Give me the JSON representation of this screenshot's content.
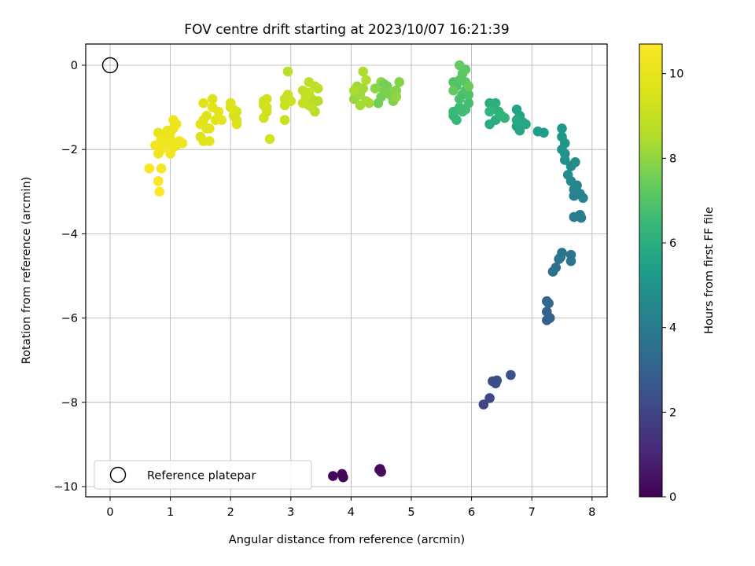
{
  "chart_data": {
    "type": "scatter",
    "title": "FOV centre drift starting at 2023/10/07 16:21:39",
    "xlabel": "Angular distance from reference (arcmin)",
    "ylabel": "Rotation from reference (arcmin)",
    "xlim": [
      -0.4,
      8.25
    ],
    "ylim": [
      -10.25,
      0.5
    ],
    "xticks": [
      0,
      1,
      2,
      3,
      4,
      5,
      6,
      7,
      8
    ],
    "xtick_labels": [
      "0",
      "1",
      "2",
      "3",
      "4",
      "5",
      "6",
      "7",
      "8"
    ],
    "yticks": [
      0,
      -2,
      -4,
      -6,
      -8,
      -10
    ],
    "ytick_labels": [
      "0",
      "−2",
      "−4",
      "−6",
      "−8",
      "−10"
    ],
    "grid": true,
    "legend": {
      "placement": "lower-left",
      "entries": [
        "Reference platepar"
      ]
    },
    "reference_point": {
      "x": 0,
      "y": 0
    },
    "colorbar": {
      "label": "Hours from first FF file",
      "colormap": "viridis",
      "range": [
        0,
        10.7
      ],
      "ticks": [
        0,
        2,
        4,
        6,
        8,
        10
      ],
      "tick_labels": [
        "0",
        "2",
        "4",
        "6",
        "8",
        "10"
      ]
    },
    "points": [
      [
        3.7,
        -9.75,
        0.1
      ],
      [
        3.85,
        -9.7,
        0.2
      ],
      [
        3.87,
        -9.78,
        0.15
      ],
      [
        4.47,
        -9.6,
        0.3
      ],
      [
        4.5,
        -9.65,
        0.35
      ],
      [
        4.48,
        -9.58,
        0.25
      ],
      [
        6.2,
        -8.05,
        2.0
      ],
      [
        6.3,
        -7.9,
        2.1
      ],
      [
        6.35,
        -7.5,
        2.2
      ],
      [
        6.4,
        -7.55,
        2.25
      ],
      [
        6.42,
        -7.48,
        2.3
      ],
      [
        6.65,
        -7.35,
        2.4
      ],
      [
        7.25,
        -6.05,
        3.0
      ],
      [
        7.3,
        -6.0,
        3.05
      ],
      [
        7.25,
        -5.85,
        3.1
      ],
      [
        7.25,
        -5.6,
        3.15
      ],
      [
        7.28,
        -5.65,
        3.2
      ],
      [
        7.35,
        -4.9,
        3.5
      ],
      [
        7.4,
        -4.8,
        3.55
      ],
      [
        7.45,
        -4.6,
        3.6
      ],
      [
        7.5,
        -4.45,
        3.65
      ],
      [
        7.48,
        -4.55,
        3.7
      ],
      [
        7.65,
        -4.5,
        3.75
      ],
      [
        7.65,
        -4.65,
        3.8
      ],
      [
        7.7,
        -3.6,
        4.0
      ],
      [
        7.8,
        -3.55,
        4.05
      ],
      [
        7.82,
        -3.62,
        4.1
      ],
      [
        7.7,
        -3.1,
        4.2
      ],
      [
        7.75,
        -3.0,
        4.25
      ],
      [
        7.8,
        -3.05,
        4.3
      ],
      [
        7.85,
        -3.15,
        4.35
      ],
      [
        7.75,
        -2.85,
        4.4
      ],
      [
        7.7,
        -2.95,
        4.45
      ],
      [
        7.65,
        -2.75,
        4.5
      ],
      [
        7.6,
        -2.6,
        4.6
      ],
      [
        7.65,
        -2.4,
        4.65
      ],
      [
        7.72,
        -2.3,
        4.7
      ],
      [
        7.55,
        -2.25,
        4.8
      ],
      [
        7.55,
        -2.1,
        4.9
      ],
      [
        7.5,
        -2.0,
        5.0
      ],
      [
        7.55,
        -1.85,
        5.05
      ],
      [
        7.5,
        -1.7,
        5.1
      ],
      [
        7.5,
        -1.5,
        5.15
      ],
      [
        7.1,
        -1.57,
        5.3
      ],
      [
        7.2,
        -1.6,
        5.35
      ],
      [
        6.75,
        -1.05,
        5.5
      ],
      [
        6.8,
        -1.2,
        5.55
      ],
      [
        6.75,
        -1.45,
        5.6
      ],
      [
        6.8,
        -1.55,
        5.65
      ],
      [
        6.85,
        -1.35,
        5.7
      ],
      [
        6.9,
        -1.4,
        5.75
      ],
      [
        6.75,
        -1.3,
        5.8
      ],
      [
        6.3,
        -1.4,
        5.9
      ],
      [
        6.4,
        -1.3,
        5.95
      ],
      [
        6.35,
        -1.0,
        6.0
      ],
      [
        6.3,
        -0.9,
        6.05
      ],
      [
        6.4,
        -0.9,
        6.1
      ],
      [
        6.45,
        -1.1,
        6.15
      ],
      [
        6.5,
        -1.2,
        6.2
      ],
      [
        6.55,
        -1.25,
        6.25
      ],
      [
        6.3,
        -1.1,
        6.3
      ],
      [
        5.7,
        -1.2,
        6.4
      ],
      [
        5.75,
        -1.3,
        6.45
      ],
      [
        5.7,
        -1.1,
        6.5
      ],
      [
        5.8,
        -1.0,
        6.55
      ],
      [
        5.85,
        -1.1,
        6.6
      ],
      [
        5.9,
        -1.05,
        6.65
      ],
      [
        5.95,
        -0.9,
        6.7
      ],
      [
        5.8,
        -0.8,
        6.75
      ],
      [
        5.85,
        -0.7,
        6.8
      ],
      [
        5.9,
        -0.6,
        6.85
      ],
      [
        5.95,
        -0.7,
        6.9
      ],
      [
        5.75,
        -0.5,
        6.95
      ],
      [
        5.7,
        -0.4,
        7.0
      ],
      [
        5.8,
        -0.35,
        7.05
      ],
      [
        5.9,
        -0.4,
        7.1
      ],
      [
        5.85,
        -0.2,
        7.15
      ],
      [
        5.9,
        -0.1,
        7.2
      ],
      [
        5.8,
        0.0,
        7.25
      ],
      [
        5.7,
        -0.6,
        7.3
      ],
      [
        5.95,
        -0.5,
        7.35
      ],
      [
        4.45,
        -0.9,
        7.5
      ],
      [
        4.5,
        -0.75,
        7.55
      ],
      [
        4.55,
        -0.6,
        7.6
      ],
      [
        4.6,
        -0.5,
        7.65
      ],
      [
        4.65,
        -0.7,
        7.7
      ],
      [
        4.7,
        -0.85,
        7.75
      ],
      [
        4.75,
        -0.6,
        7.8
      ],
      [
        4.8,
        -0.4,
        7.85
      ],
      [
        4.5,
        -0.4,
        7.9
      ],
      [
        4.4,
        -0.55,
        7.95
      ],
      [
        4.75,
        -0.75,
        8.0
      ],
      [
        4.55,
        -0.45,
        7.58
      ],
      [
        4.05,
        -0.8,
        8.1
      ],
      [
        4.1,
        -0.5,
        8.15
      ],
      [
        4.15,
        -0.7,
        8.2
      ],
      [
        4.2,
        -0.55,
        8.25
      ],
      [
        4.25,
        -0.85,
        8.3
      ],
      [
        4.3,
        -0.9,
        8.35
      ],
      [
        4.05,
        -0.6,
        8.4
      ],
      [
        4.2,
        -0.15,
        8.45
      ],
      [
        4.25,
        -0.35,
        8.5
      ],
      [
        4.15,
        -0.95,
        8.3
      ],
      [
        3.3,
        -0.95,
        8.55
      ],
      [
        3.35,
        -0.8,
        8.6
      ],
      [
        3.4,
        -1.1,
        8.65
      ],
      [
        3.45,
        -0.55,
        8.7
      ],
      [
        3.3,
        -0.4,
        8.75
      ],
      [
        3.4,
        -0.5,
        8.8
      ],
      [
        3.2,
        -0.6,
        8.85
      ],
      [
        3.25,
        -0.75,
        8.9
      ],
      [
        3.3,
        -0.65,
        8.95
      ],
      [
        3.2,
        -0.9,
        9.0
      ],
      [
        3.35,
        -1.0,
        8.85
      ],
      [
        3.45,
        -0.85,
        8.6
      ],
      [
        2.9,
        -0.8,
        9.0
      ],
      [
        2.95,
        -0.7,
        9.05
      ],
      [
        2.9,
        -0.95,
        9.1
      ],
      [
        2.95,
        -0.15,
        8.7
      ],
      [
        2.9,
        -1.3,
        9.1
      ],
      [
        3.0,
        -0.85,
        9.15
      ],
      [
        2.55,
        -0.85,
        9.2
      ],
      [
        2.6,
        -1.1,
        9.25
      ],
      [
        2.55,
        -1.25,
        9.3
      ],
      [
        2.6,
        -1.0,
        9.32
      ],
      [
        2.55,
        -0.95,
        9.35
      ],
      [
        2.65,
        -1.75,
        9.4
      ],
      [
        2.6,
        -0.8,
        9.28
      ],
      [
        2.0,
        -1.0,
        9.4
      ],
      [
        2.05,
        -1.2,
        9.45
      ],
      [
        2.1,
        -1.1,
        9.5
      ],
      [
        2.1,
        -1.3,
        9.55
      ],
      [
        2.0,
        -0.9,
        9.6
      ],
      [
        2.1,
        -1.4,
        9.65
      ],
      [
        2.05,
        -1.05,
        9.7
      ],
      [
        1.5,
        -1.7,
        9.6
      ],
      [
        1.6,
        -1.5,
        9.65
      ],
      [
        1.55,
        -1.3,
        9.7
      ],
      [
        1.6,
        -1.2,
        9.75
      ],
      [
        1.7,
        -1.0,
        9.8
      ],
      [
        1.75,
        -1.3,
        9.85
      ],
      [
        1.8,
        -1.1,
        9.9
      ],
      [
        1.85,
        -1.3,
        9.92
      ],
      [
        1.65,
        -1.8,
        9.95
      ],
      [
        1.55,
        -1.8,
        9.8
      ],
      [
        1.5,
        -1.4,
        9.78
      ],
      [
        1.55,
        -0.9,
        9.72
      ],
      [
        1.7,
        -0.8,
        9.68
      ],
      [
        1.65,
        -1.5,
        9.9
      ],
      [
        0.8,
        -1.6,
        10.0
      ],
      [
        0.9,
        -1.7,
        10.05
      ],
      [
        1.0,
        -1.6,
        10.1
      ],
      [
        1.05,
        -1.5,
        10.12
      ],
      [
        1.1,
        -1.4,
        10.15
      ],
      [
        1.05,
        -1.3,
        10.2
      ],
      [
        0.95,
        -1.85,
        10.25
      ],
      [
        0.85,
        -2.0,
        10.3
      ],
      [
        1.0,
        -2.1,
        10.35
      ],
      [
        1.05,
        -1.95,
        10.3
      ],
      [
        0.9,
        -1.9,
        10.25
      ],
      [
        0.8,
        -2.1,
        10.28
      ],
      [
        1.15,
        -1.8,
        10.2
      ],
      [
        1.2,
        -1.85,
        10.15
      ],
      [
        0.75,
        -1.9,
        10.3
      ],
      [
        0.85,
        -1.75,
        10.22
      ],
      [
        1.0,
        -1.75,
        10.18
      ],
      [
        1.1,
        -1.9,
        10.2
      ],
      [
        0.95,
        -1.55,
        10.08
      ],
      [
        0.85,
        -2.45,
        10.4
      ],
      [
        0.65,
        -2.45,
        10.5
      ],
      [
        0.8,
        -2.75,
        10.6
      ],
      [
        0.82,
        -3.0,
        10.7
      ]
    ]
  }
}
